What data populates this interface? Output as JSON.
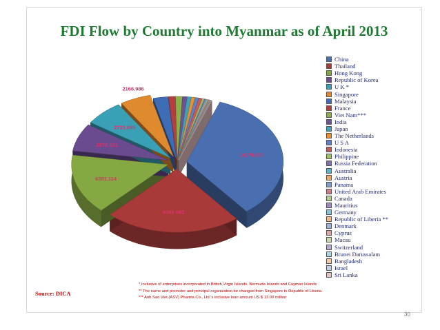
{
  "slide": {
    "title": "FDI Flow by Country into Myanmar as of April 2013",
    "source": "Source: DICA",
    "notes": [
      "*     Inclusive of enterprises incorporated in British Virgin Islands, Bermuda Islands and Cayman Islands",
      "**   The name and promoter and principal organization be changed from Singapore to Republic of Liberia.",
      "*** Anh Sao Viet (ASV) Pharma Co., Ltd.'s inclusive loan amount US $  12.00 million"
    ],
    "page_number": "30"
  },
  "chart_data": {
    "type": "pie",
    "title": "FDI Flow by Country into Myanmar as of April 2013",
    "legend_position": "right",
    "categories": [
      "China",
      "Thailand",
      "Hong Kong",
      "Republic of Korea",
      "U K *",
      "Singapore",
      "Malaysia",
      "France",
      "Viet Nam***",
      "India",
      "Japan",
      "The Netherlands",
      "U S A",
      "Indonesia",
      "Philippine",
      "Russia Federation",
      "Australia",
      "Austria",
      "Panama",
      "United Arab Emirates",
      "Canada",
      "Mauritius",
      "Germany",
      "Republic of  Liberia **",
      "Denmark",
      "Cyprus",
      "Macau",
      "Switzerland",
      "Brunei Darussalam",
      "Bangladesh",
      "Israel",
      "Sri Lanka"
    ],
    "values": [
      14178.009,
      9568.093,
      6381.114,
      2970.231,
      2721.665,
      2166.986,
      1029.0,
      475.0,
      470.0,
      309.0,
      283.0,
      255.0,
      244.0,
      241.0,
      146.0,
      94.0,
      84.0,
      72.0,
      58.0,
      41.0,
      39.0,
      30.0,
      23.0,
      20.0,
      15.0,
      11.0,
      7.0,
      4.0,
      4.0,
      3.0,
      2.0,
      1.0
    ],
    "value_labels": [
      "14178.009",
      "9568.093",
      "6381.114",
      "2970.231",
      "2721.665",
      "2166.986",
      "",
      "",
      "",
      "",
      "",
      "",
      "",
      "",
      "",
      "",
      "",
      "",
      "",
      "",
      "",
      "",
      "",
      "",
      "",
      "",
      "",
      "",
      "",
      "",
      "",
      ""
    ],
    "colors": [
      "#4a6fb0",
      "#a83a3a",
      "#86a843",
      "#6a4b8f",
      "#3aa0b5",
      "#e08a2e",
      "#3f6db5",
      "#b33f3f",
      "#8cb04a",
      "#6e5296",
      "#3ea2b8",
      "#e8902f",
      "#5b83c6",
      "#c45a5a",
      "#9dc163",
      "#8570ab",
      "#5db5c9",
      "#efa75f",
      "#7d9ccf",
      "#cf7f7f",
      "#b2ce8a",
      "#9e8cbc",
      "#86c5d5",
      "#f2b987",
      "#9fb4db",
      "#daa4a4",
      "#c7dbab",
      "#b6a9cd",
      "#a9d5e0",
      "#f5cba5",
      "#c3cfe5",
      "#e6c2c2"
    ]
  }
}
